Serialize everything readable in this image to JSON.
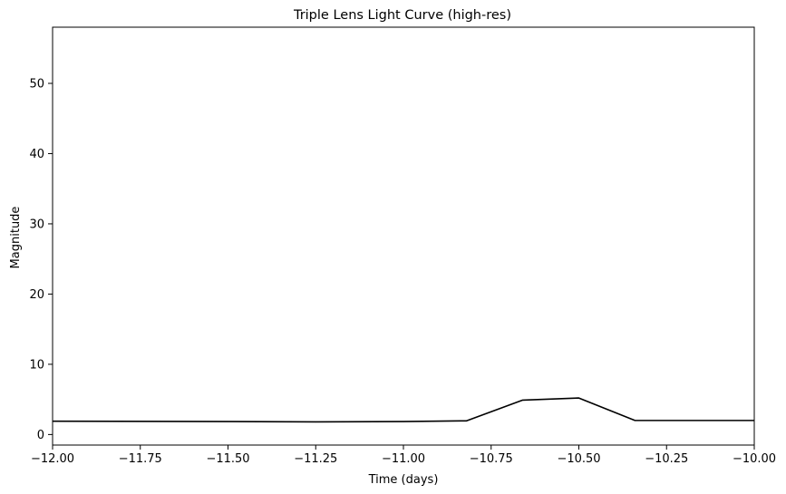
{
  "chart_data": {
    "type": "line",
    "title": "Triple Lens Light Curve (high-res)",
    "xlabel": "Time (days)",
    "ylabel": "Magnitude",
    "xlim": [
      -12.0,
      -10.0
    ],
    "ylim": [
      -1.5,
      58.0
    ],
    "grid": false,
    "xticks": [
      -12.0,
      -11.75,
      -11.5,
      -11.25,
      -11.0,
      -10.75,
      -10.5,
      -10.25,
      -10.0
    ],
    "xtick_labels": [
      "−12.00",
      "−11.75",
      "−11.50",
      "−11.25",
      "−11.00",
      "−10.75",
      "−10.50",
      "−10.25",
      "−10.00"
    ],
    "yticks": [
      0,
      10,
      20,
      30,
      40,
      50
    ],
    "ytick_labels": [
      "0",
      "10",
      "20",
      "30",
      "40",
      "50"
    ],
    "series": [
      {
        "color": "#000000",
        "x": [
          -12.0,
          -11.5,
          -11.25,
          -11.0,
          -10.82,
          -10.66,
          -10.5,
          -10.34,
          -10.0
        ],
        "y": [
          1.9,
          1.85,
          1.8,
          1.85,
          1.95,
          4.9,
          5.2,
          2.0,
          2.0
        ]
      }
    ]
  }
}
